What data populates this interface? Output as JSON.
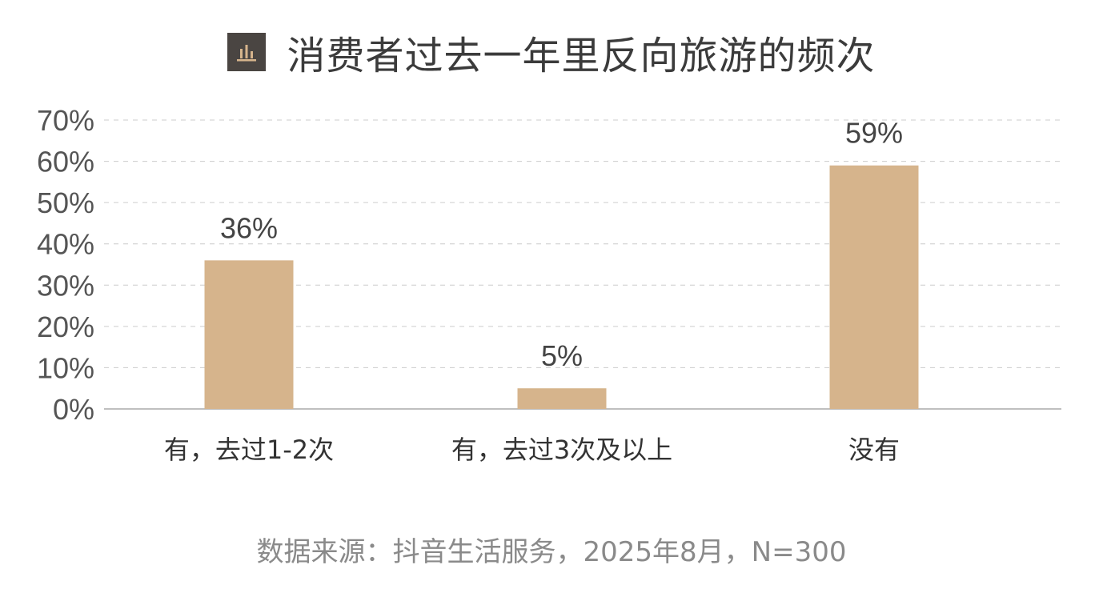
{
  "title": "消费者过去一年里反向旅游的频次",
  "title_icon": "bar-chart-icon",
  "source": "数据来源：抖音生活服务，2025年8月，N=300",
  "colors": {
    "bar": "#d6b48c",
    "axis_text": "#555555",
    "grid": "#cccccc",
    "icon_bg": "#4a4542",
    "icon_fg": "#d6b48c"
  },
  "chart_data": {
    "type": "bar",
    "title": "消费者过去一年里反向旅游的频次",
    "categories": [
      "有，去过1-2次",
      "有，去过3次及以上",
      "没有"
    ],
    "values": [
      36,
      5,
      59
    ],
    "value_labels": [
      "36%",
      "5%",
      "59%"
    ],
    "ylim": [
      0,
      70
    ],
    "yticks": [
      "0%",
      "10%",
      "20%",
      "30%",
      "40%",
      "50%",
      "60%",
      "70%"
    ],
    "grid": "horizontal-dashed",
    "legend": "none"
  }
}
